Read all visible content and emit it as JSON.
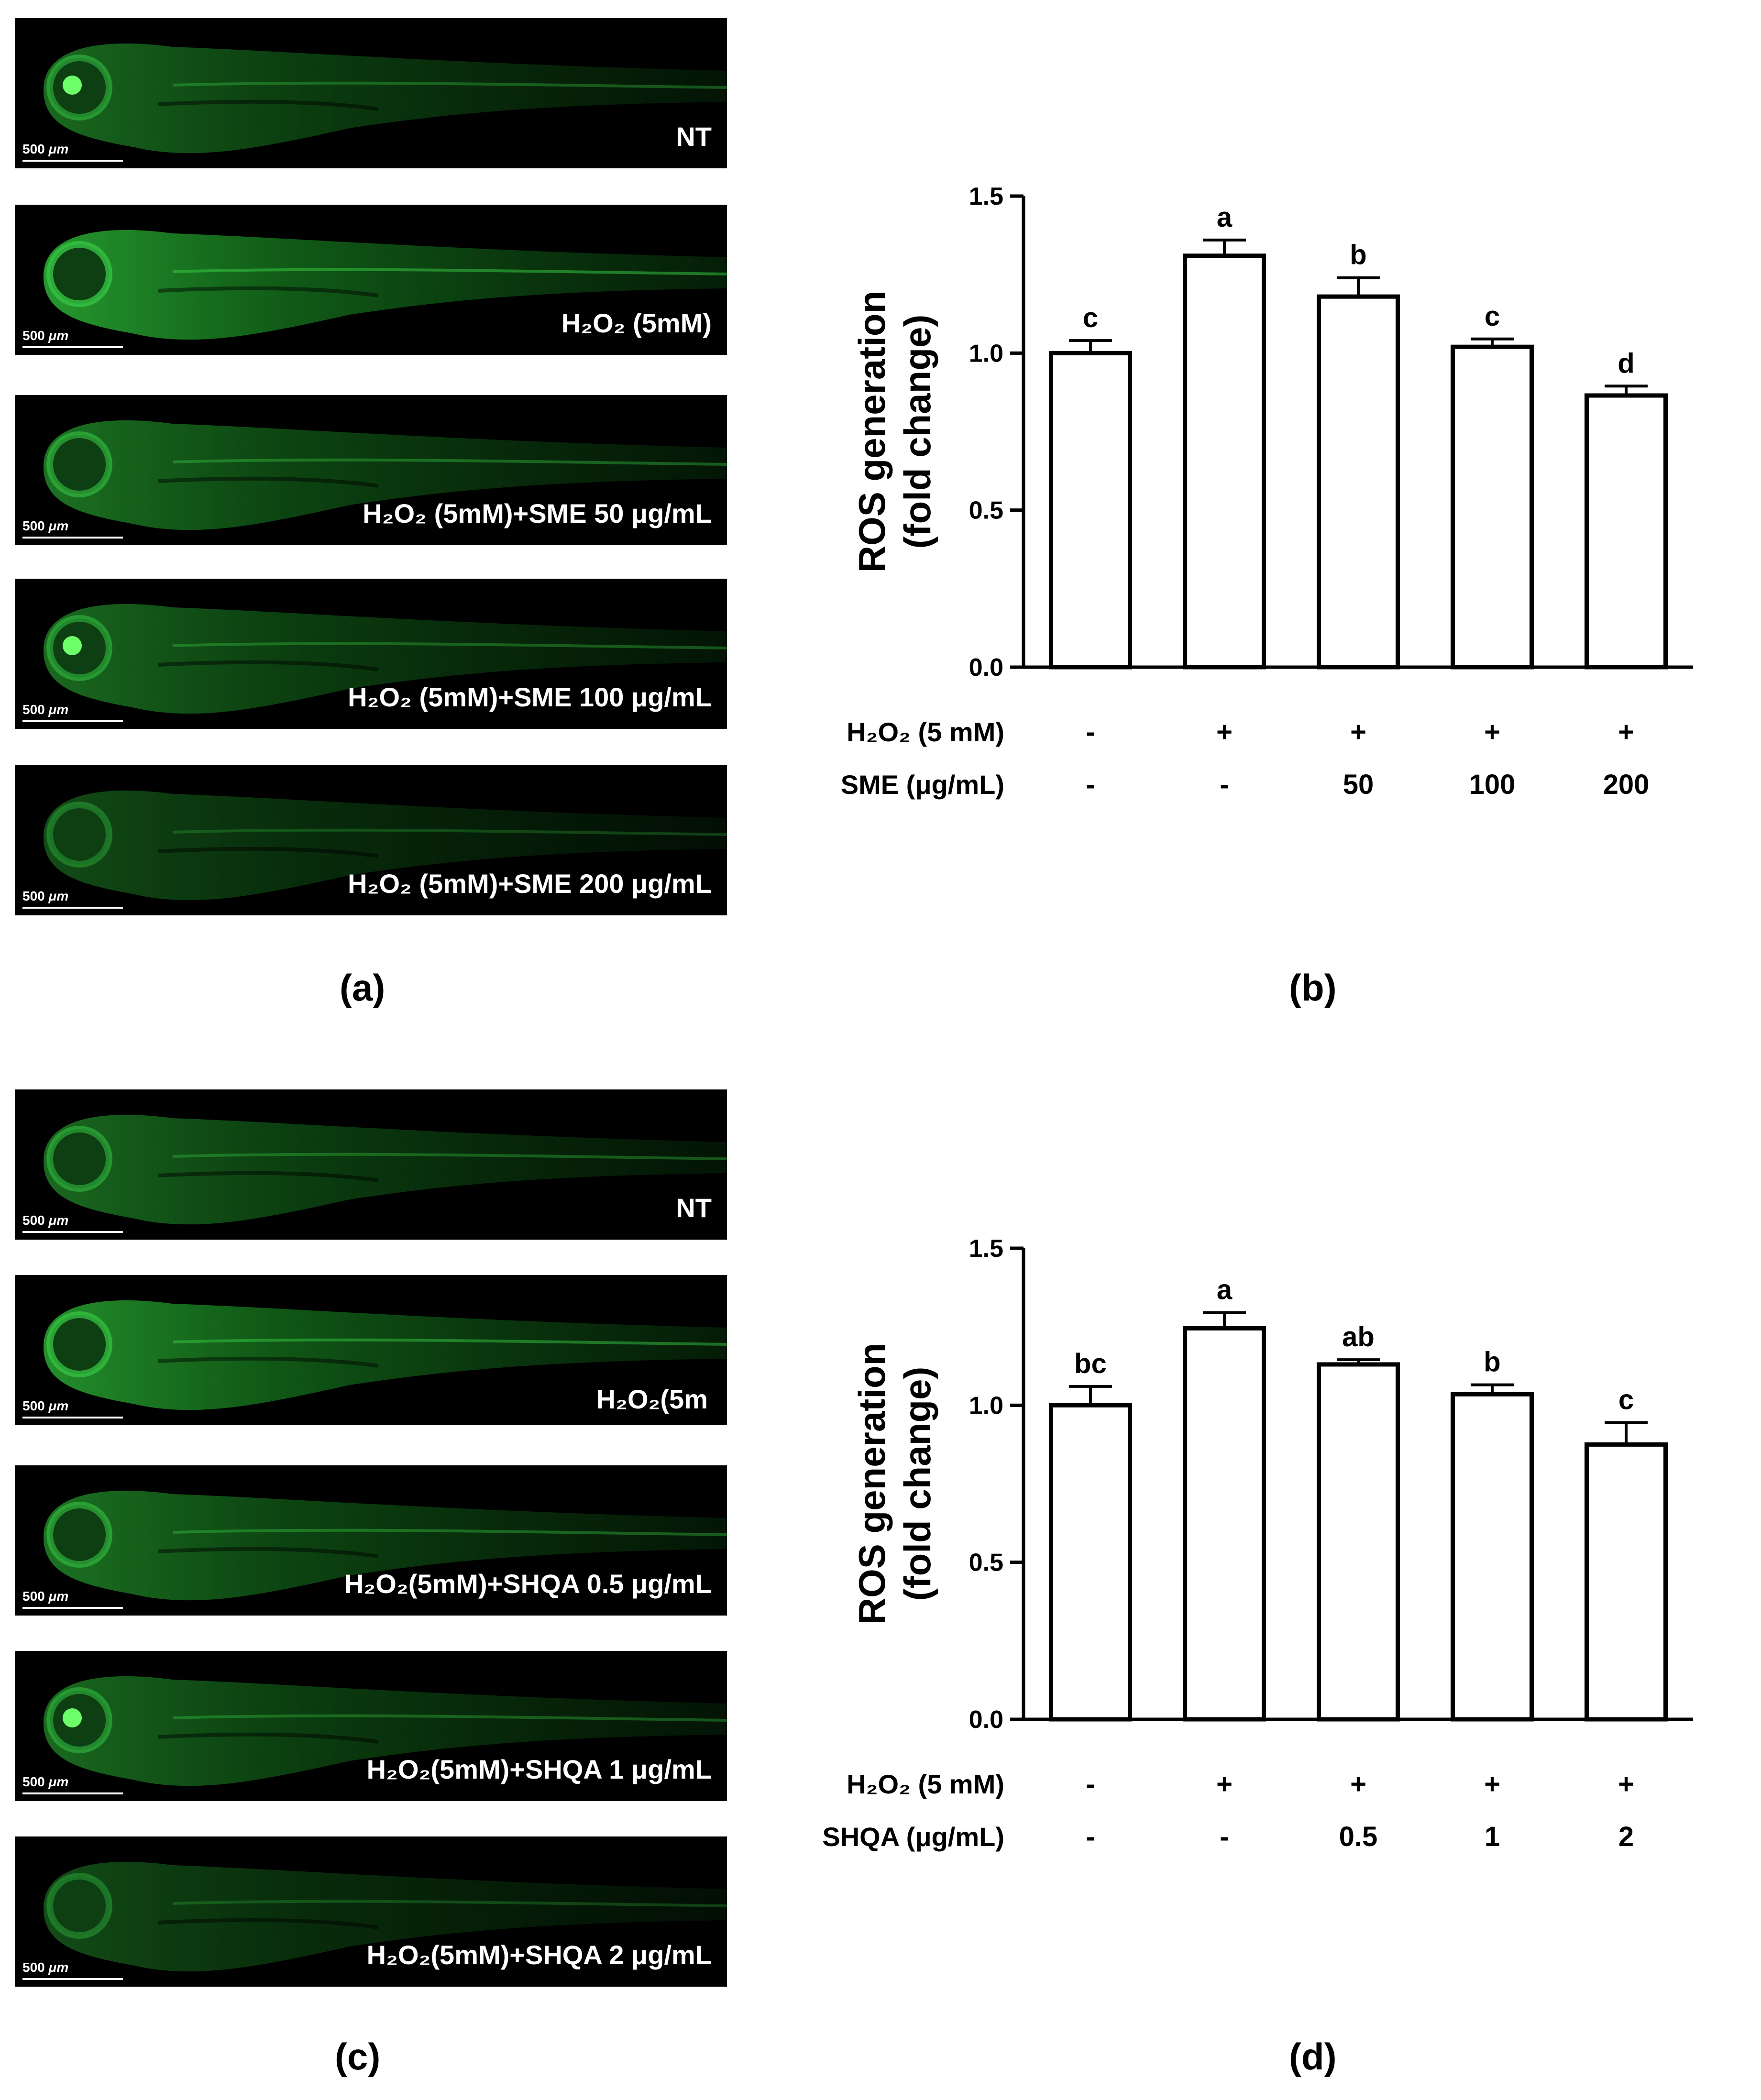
{
  "panel_a": {
    "letter": "(a)",
    "images": [
      {
        "scale": "500 ",
        "unit": "μm",
        "label": "NT"
      },
      {
        "scale": "500 ",
        "unit": "μm",
        "label": "H₂O₂ (5mM)"
      },
      {
        "scale": "500 ",
        "unit": "μm",
        "label": "H₂O₂ (5mM)+SME 50 μg/mL"
      },
      {
        "scale": "500 ",
        "unit": "μm",
        "label": "H₂O₂ (5mM)+SME 100 μg/mL"
      },
      {
        "scale": "500 ",
        "unit": "μm",
        "label": "H₂O₂ (5mM)+SME 200 μg/mL"
      }
    ]
  },
  "panel_c": {
    "letter": "(c)",
    "images": [
      {
        "scale": "500 ",
        "unit": "μm",
        "label": "NT"
      },
      {
        "scale": "500 ",
        "unit": "μm",
        "label": "H₂O₂(5m"
      },
      {
        "scale": "500 ",
        "unit": "μm",
        "label": "H₂O₂(5mM)+SHQA 0.5 μg/mL"
      },
      {
        "scale": "500 ",
        "unit": "μm",
        "label": "H₂O₂(5mM)+SHQA 1 μg/mL"
      },
      {
        "scale": "500 ",
        "unit": "μm",
        "label": "H₂O₂(5mM)+SHQA 2 μg/mL"
      }
    ]
  },
  "chart_data": [
    {
      "panel": "(b)",
      "type": "bar",
      "ylabel": [
        "ROS generation",
        "(fold change)"
      ],
      "ylim": [
        0,
        1.5
      ],
      "yticks": [
        "0.0",
        "0.5",
        "1.0",
        "1.5"
      ],
      "values": [
        1.0,
        1.31,
        1.18,
        1.02,
        0.865
      ],
      "errors": [
        0.04,
        0.05,
        0.06,
        0.025,
        0.03
      ],
      "letters": [
        "c",
        "a",
        "b",
        "c",
        "d"
      ],
      "rows": [
        {
          "label": "H₂O₂ (5 mM)",
          "cells": [
            "-",
            "+",
            "+",
            "+",
            "+"
          ]
        },
        {
          "label": "SME (μg/mL)",
          "cells": [
            "-",
            "-",
            "50",
            "100",
            "200"
          ]
        }
      ]
    },
    {
      "panel": "(d)",
      "type": "bar",
      "ylabel": [
        "ROS generation",
        "(fold change)"
      ],
      "ylim": [
        0,
        1.5
      ],
      "yticks": [
        "0.0",
        "0.5",
        "1.0",
        "1.5"
      ],
      "values": [
        1.0,
        1.245,
        1.13,
        1.035,
        0.875
      ],
      "errors": [
        0.06,
        0.05,
        0.015,
        0.03,
        0.07
      ],
      "letters": [
        "bc",
        "a",
        "ab",
        "b",
        "c"
      ],
      "rows": [
        {
          "label": "H₂O₂ (5 mM)",
          "cells": [
            "-",
            "+",
            "+",
            "+",
            "+"
          ]
        },
        {
          "label": "SHQA (μg/mL)",
          "cells": [
            "-",
            "-",
            "0.5",
            "1",
            "2"
          ]
        }
      ]
    }
  ]
}
